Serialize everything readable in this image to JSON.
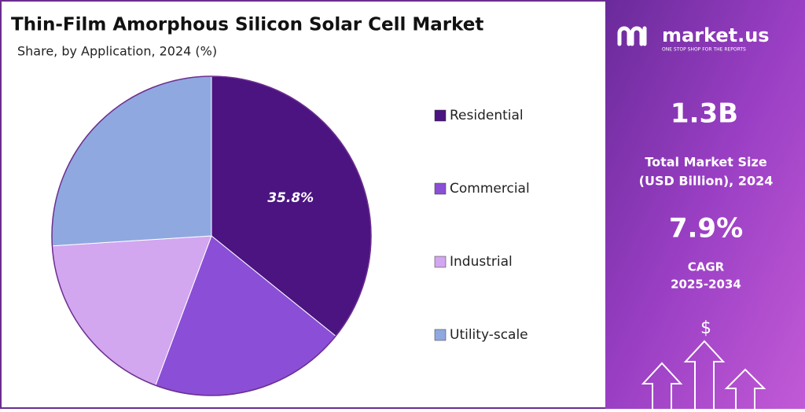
{
  "chart_data": {
    "type": "pie",
    "title": "Thin-Film Amorphous Silicon Solar Cell Market",
    "subtitle": "Share, by Application, 2024 (%)",
    "categories": [
      "Residential",
      "Commercial",
      "Industrial",
      "Utility-scale"
    ],
    "values": [
      35.8,
      19.9,
      18.3,
      26.0
    ],
    "value_labels": [
      "35.8%",
      null,
      null,
      null
    ],
    "colors": [
      "#4b1480",
      "#8a4fd6",
      "#d3a6f0",
      "#8fa8e0"
    ],
    "legend": "right"
  },
  "panel": {
    "brand": "market.us",
    "tagline": "ONE STOP SHOP FOR THE REPORTS",
    "market_size": "1.3B",
    "market_size_label_1": "Total Market Size",
    "market_size_label_2": "(USD Billion), 2024",
    "cagr": "7.9%",
    "cagr_label_1": "CAGR",
    "cagr_label_2": "2025-2034",
    "icon": "$"
  }
}
